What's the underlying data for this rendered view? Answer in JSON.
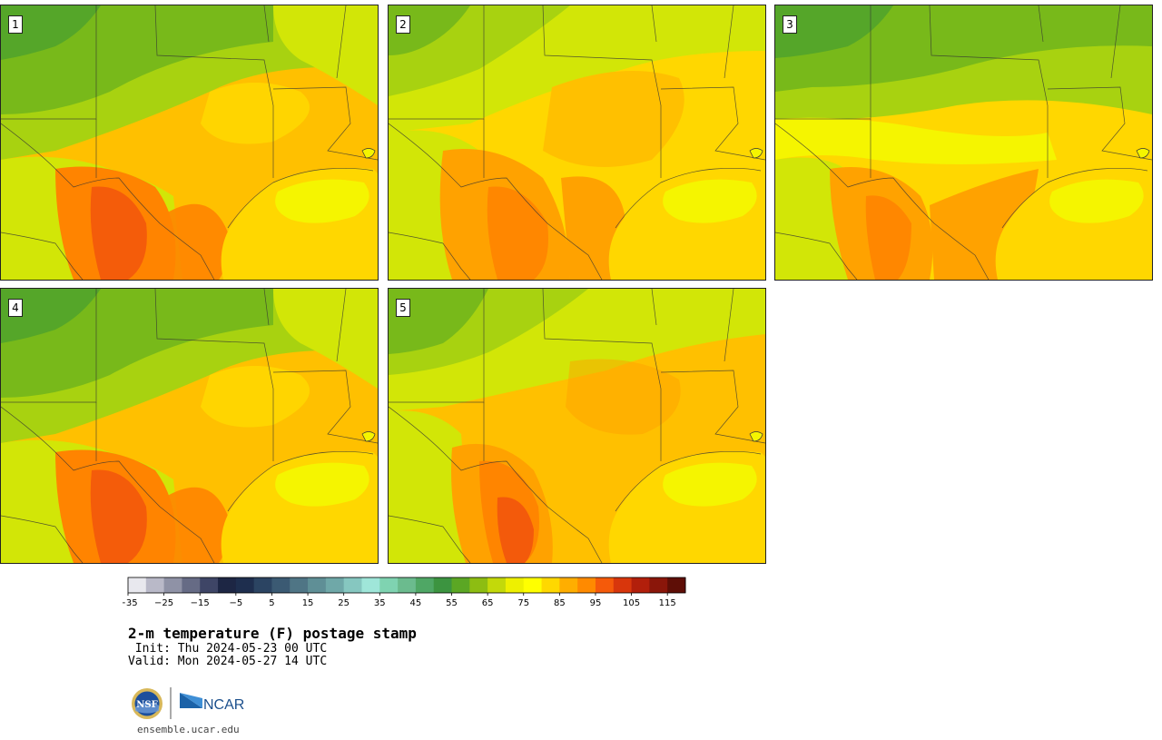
{
  "title": "2-m temperature (F) postage stamp",
  "init_text": " Init: Thu 2024-05-23 00 UTC",
  "valid_text": "Valid: Mon 2024-05-27 14 UTC",
  "website": "ensemble.ucar.edu",
  "logo_left": "NSF",
  "logo_right": "NCAR",
  "members": [
    {
      "label": "1",
      "pattern": "hot-west"
    },
    {
      "label": "2",
      "pattern": "warm-east"
    },
    {
      "label": "3",
      "pattern": "cool-north"
    },
    {
      "label": "4",
      "pattern": "hot-west"
    },
    {
      "label": "5",
      "pattern": "hot-south"
    }
  ],
  "colorbar": {
    "ticks": [
      "−35",
      "−25",
      "−15",
      "−5",
      "5",
      "15",
      "25",
      "35",
      "45",
      "55",
      "65",
      "75",
      "85",
      "95",
      "105",
      "115"
    ],
    "colors": [
      "#e8e8ee",
      "#b9b9c8",
      "#8f92a6",
      "#666b85",
      "#3e4566",
      "#1d2644",
      "#1e2e4e",
      "#2b4462",
      "#3b5a73",
      "#4f7585",
      "#5f8f96",
      "#6fa8a8",
      "#86c7c0",
      "#9fe6d9",
      "#7fd3b1",
      "#6bbb8e",
      "#4fa765",
      "#3c9440",
      "#5ba724",
      "#8dbd12",
      "#c3d90a",
      "#eef000",
      "#ffff00",
      "#ffd800",
      "#ffae00",
      "#ff8a00",
      "#f55a0a",
      "#d8360c",
      "#b21f0b",
      "#8a160a",
      "#5e0e06"
    ]
  }
}
